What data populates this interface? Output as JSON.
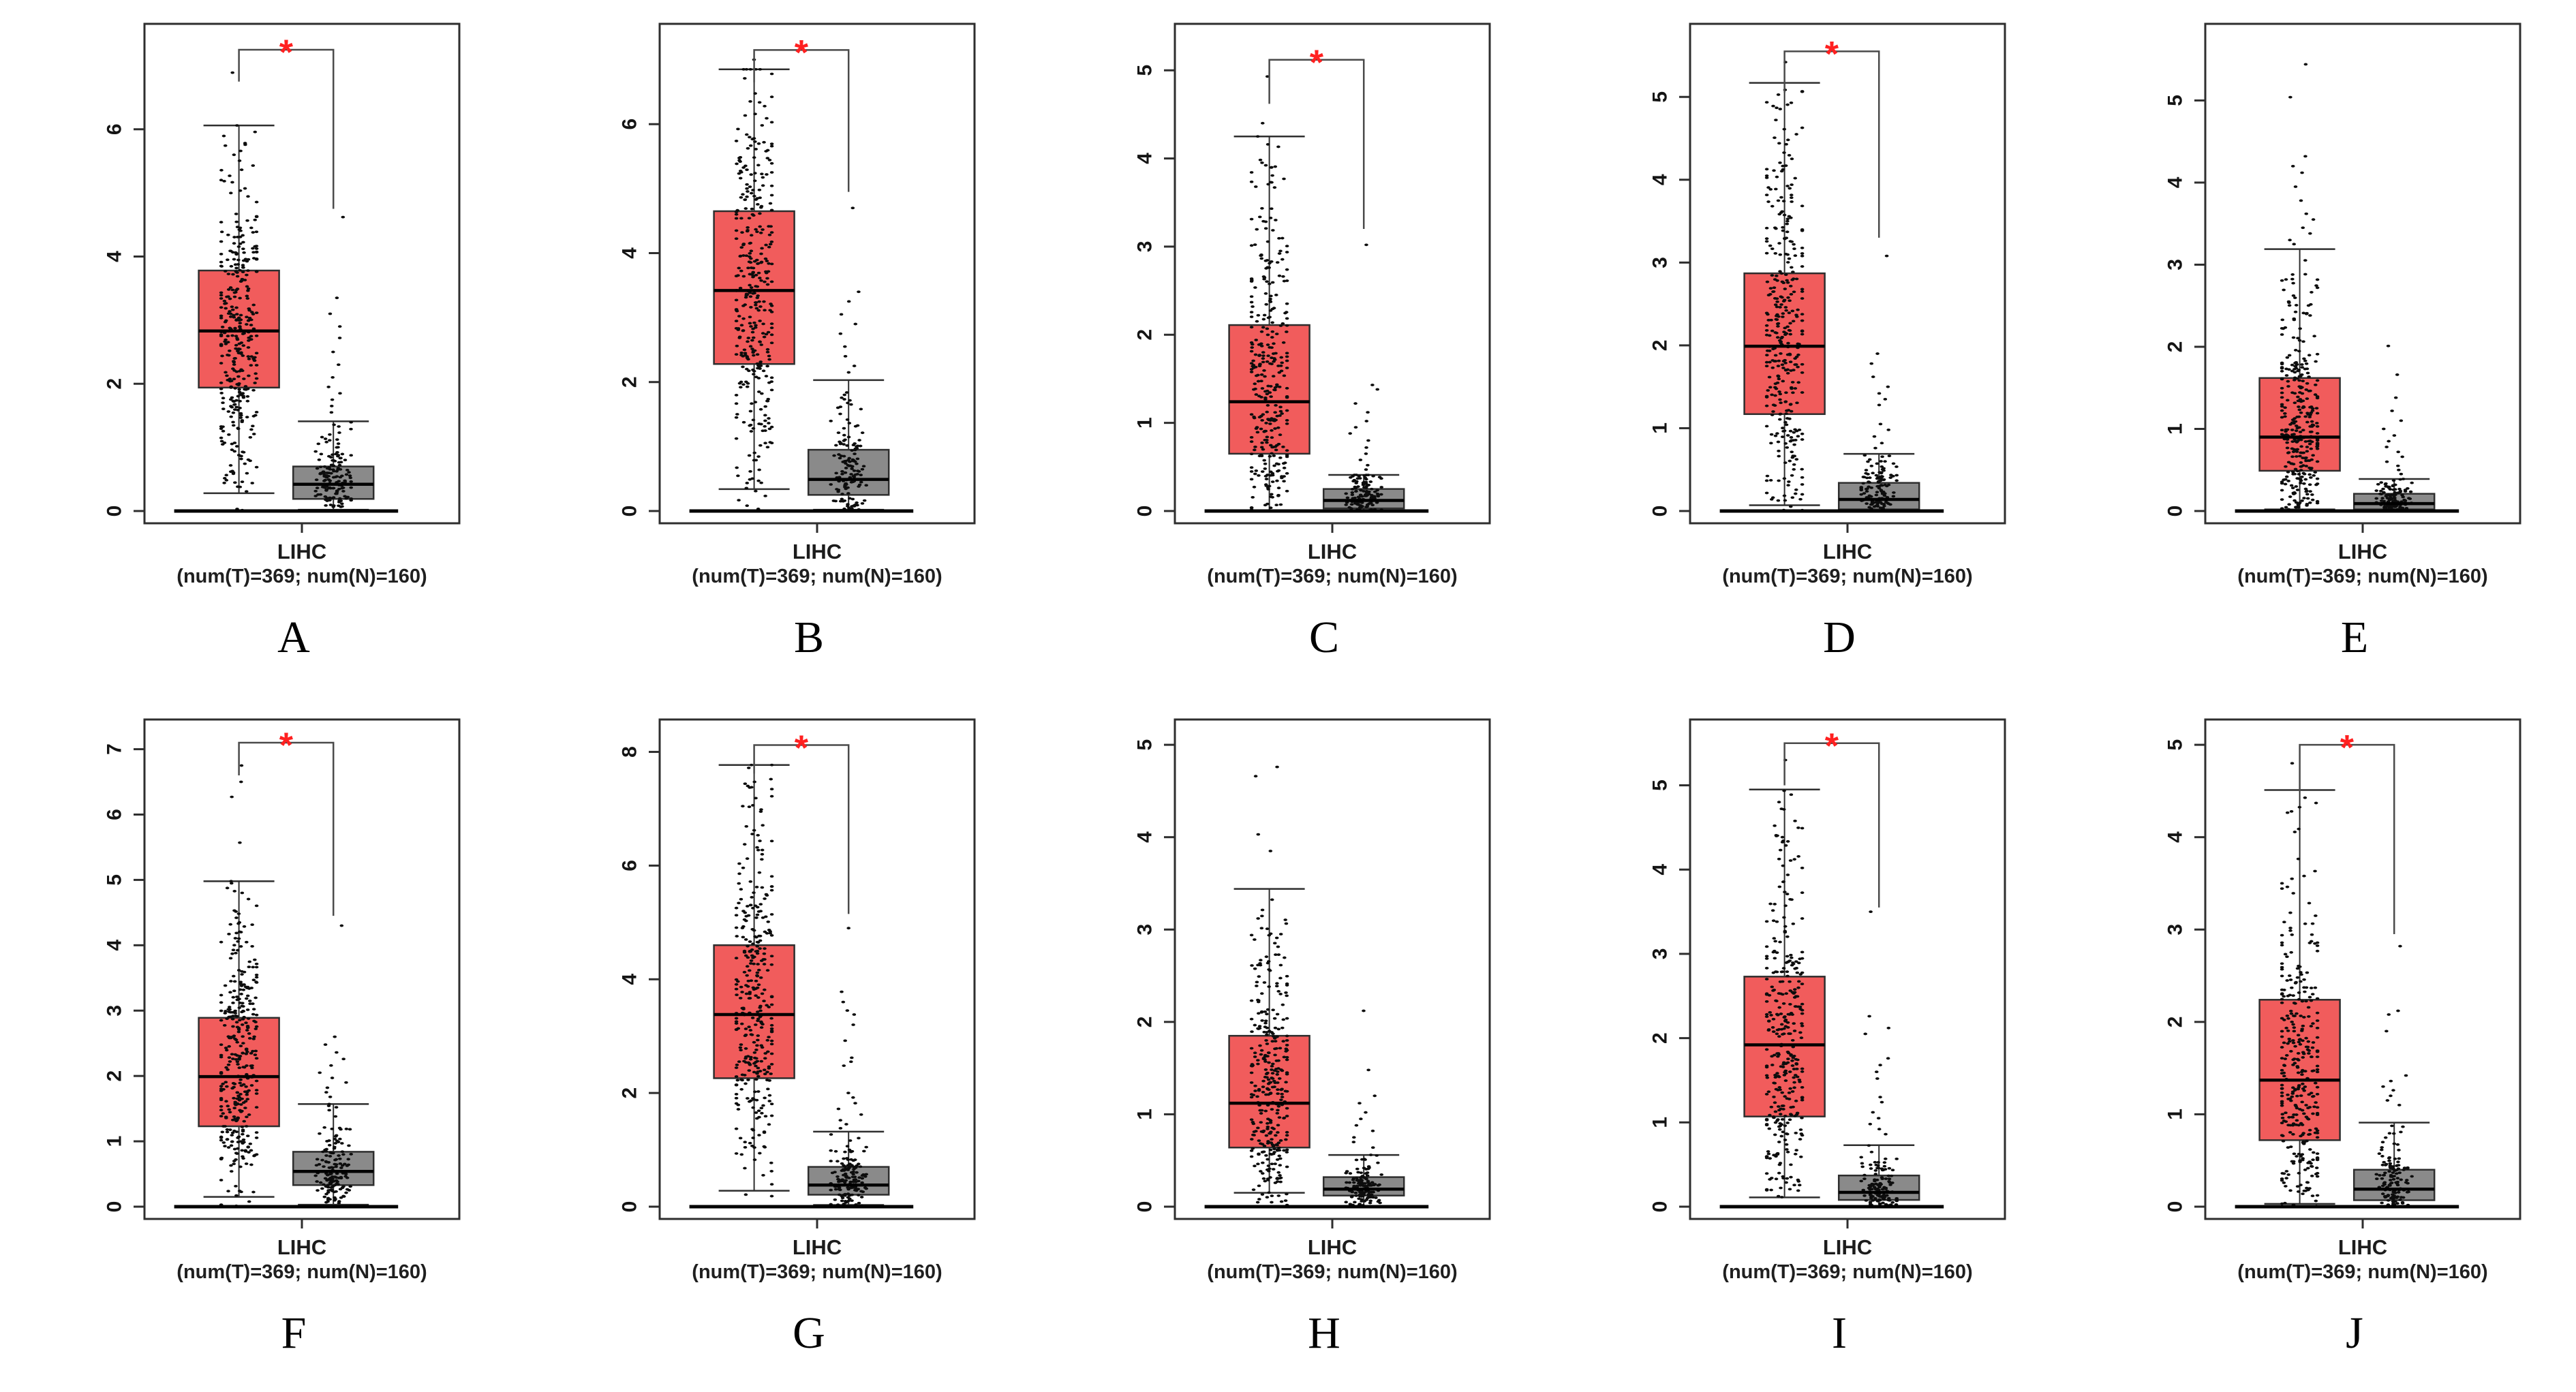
{
  "figure": {
    "description": "Ten GEPIA-style gene expression box plots (tumor vs normal) in LIHC",
    "cohort": "LIHC",
    "significance_marker": "*"
  },
  "chart_data": {
    "type": "box",
    "xlabel": "LIHC",
    "sublabel": "(num(T)=369; num(N)=160)",
    "n_tumor": 369,
    "n_normal": 160,
    "legend_position": "none",
    "grid": false,
    "colors": {
      "tumor": "#f15c5c",
      "normal": "#8a8a8a",
      "frame": "#2e2e2e",
      "point": "#0d0d0d",
      "median": "#000000",
      "bracket": "#4a4a4a",
      "significance": "#ff2020"
    },
    "panels": [
      {
        "letter": "A",
        "significant": true,
        "yticks": [
          0,
          2,
          4,
          6
        ],
        "ymax": 7.55,
        "bracket": {
          "top": 7.25,
          "right_bottom": 4.75
        },
        "tumor": {
          "low": 0.28,
          "q1": 1.94,
          "median": 2.83,
          "q3": 3.78,
          "high": 6.06,
          "outliers": [
            6.89
          ]
        },
        "normal": {
          "low": 0.02,
          "q1": 0.19,
          "median": 0.42,
          "q3": 0.7,
          "high": 1.41,
          "outliers": [
            4.62,
            3.35,
            3.1,
            2.9,
            2.72,
            2.5,
            2.3,
            2.1,
            1.95,
            1.85,
            1.75,
            1.65,
            1.55
          ]
        }
      },
      {
        "letter": "B",
        "significant": true,
        "yticks": [
          0,
          2,
          4,
          6
        ],
        "ymax": 7.45,
        "bracket": {
          "top": 7.15,
          "right_bottom": 4.95
        },
        "tumor": {
          "low": 0.34,
          "q1": 2.28,
          "median": 3.42,
          "q3": 4.65,
          "high": 6.85,
          "outliers": [
            7.0
          ]
        },
        "normal": {
          "low": 0.02,
          "q1": 0.25,
          "median": 0.49,
          "q3": 0.95,
          "high": 2.03,
          "outliers": [
            4.7,
            3.4,
            3.25,
            3.05,
            2.9,
            2.75,
            2.55,
            2.4,
            2.25,
            2.15
          ]
        }
      },
      {
        "letter": "C",
        "significant": true,
        "yticks": [
          0,
          1,
          2,
          3,
          4,
          5
        ],
        "ymax": 5.45,
        "bracket": {
          "top": 5.12,
          "right_bottom": 3.2
        },
        "tumor": {
          "low": 0.01,
          "q1": 0.65,
          "median": 1.24,
          "q3": 2.11,
          "high": 4.25,
          "outliers": [
            4.93,
            4.4
          ]
        },
        "normal": {
          "low": 0.0,
          "q1": 0.03,
          "median": 0.12,
          "q3": 0.25,
          "high": 0.41,
          "outliers": [
            3.02,
            1.43,
            1.38,
            1.22,
            1.12,
            1.02,
            0.95,
            0.88,
            0.8,
            0.72,
            0.65,
            0.58,
            0.52,
            0.47
          ]
        }
      },
      {
        "letter": "D",
        "significant": true,
        "yticks": [
          0,
          1,
          2,
          3,
          4,
          5
        ],
        "ymax": 5.8,
        "bracket": {
          "top": 5.55,
          "right_bottom": 3.3
        },
        "tumor": {
          "low": 0.07,
          "q1": 1.17,
          "median": 1.99,
          "q3": 2.87,
          "high": 5.17,
          "outliers": [
            5.42
          ]
        },
        "normal": {
          "low": 0.0,
          "q1": 0.02,
          "median": 0.14,
          "q3": 0.34,
          "high": 0.69,
          "outliers": [
            3.08,
            1.9,
            1.78,
            1.62,
            1.5,
            1.42,
            1.35,
            1.28,
            1.05,
            0.98,
            0.9,
            0.82,
            0.76
          ]
        }
      },
      {
        "letter": "E",
        "significant": false,
        "yticks": [
          0,
          1,
          2,
          3,
          4,
          5
        ],
        "ymax": 5.85,
        "bracket": null,
        "tumor": {
          "low": 0.02,
          "q1": 0.49,
          "median": 0.9,
          "q3": 1.62,
          "high": 3.19,
          "outliers": [
            5.44,
            5.04,
            4.32,
            4.2,
            4.12,
            3.95,
            3.78,
            3.62,
            3.55,
            3.45,
            3.38,
            3.3,
            3.25
          ]
        },
        "normal": {
          "low": 0.0,
          "q1": 0.02,
          "median": 0.09,
          "q3": 0.21,
          "high": 0.39,
          "outliers": [
            2.01,
            1.66,
            1.38,
            1.22,
            1.1,
            1.0,
            0.92,
            0.85,
            0.78,
            0.72,
            0.66,
            0.6,
            0.55,
            0.5,
            0.45
          ]
        }
      },
      {
        "letter": "F",
        "significant": true,
        "yticks": [
          0,
          1,
          2,
          3,
          4,
          5,
          6,
          7
        ],
        "ymax": 7.35,
        "bracket": {
          "top": 7.1,
          "right_bottom": 4.45
        },
        "tumor": {
          "low": 0.15,
          "q1": 1.23,
          "median": 1.99,
          "q3": 2.89,
          "high": 4.98,
          "outliers": [
            6.75,
            6.5,
            6.27,
            5.57
          ]
        },
        "normal": {
          "low": 0.03,
          "q1": 0.33,
          "median": 0.54,
          "q3": 0.84,
          "high": 1.57,
          "outliers": [
            4.3,
            2.6,
            2.48,
            2.36,
            2.26,
            2.16,
            2.05,
            1.97,
            1.9,
            1.82,
            1.75,
            1.68
          ]
        }
      },
      {
        "letter": "G",
        "significant": true,
        "yticks": [
          0,
          2,
          4,
          6,
          8
        ],
        "ymax": 8.45,
        "bracket": {
          "top": 8.12,
          "right_bottom": 5.15
        },
        "tumor": {
          "low": 0.28,
          "q1": 2.26,
          "median": 3.38,
          "q3": 4.6,
          "high": 7.77,
          "outliers": []
        },
        "normal": {
          "low": 0.03,
          "q1": 0.21,
          "median": 0.38,
          "q3": 0.7,
          "high": 1.32,
          "outliers": [
            4.9,
            3.78,
            3.6,
            3.45,
            3.38,
            3.2,
            2.92,
            2.62,
            2.55,
            2.48,
            2.0,
            1.92,
            1.82,
            1.72,
            1.62,
            1.52,
            1.45,
            1.38
          ]
        }
      },
      {
        "letter": "H",
        "significant": false,
        "yticks": [
          0,
          1,
          2,
          3,
          4,
          5
        ],
        "ymax": 5.2,
        "bracket": null,
        "tumor": {
          "low": 0.15,
          "q1": 0.64,
          "median": 1.12,
          "q3": 1.85,
          "high": 3.44,
          "outliers": [
            4.76,
            4.66,
            4.03,
            3.85
          ]
        },
        "normal": {
          "low": 0.0,
          "q1": 0.12,
          "median": 0.19,
          "q3": 0.32,
          "high": 0.56,
          "outliers": [
            2.12,
            1.48,
            1.2,
            1.12,
            1.02,
            0.95,
            0.88,
            0.82,
            0.75,
            0.7,
            0.64
          ]
        }
      },
      {
        "letter": "I",
        "significant": true,
        "yticks": [
          0,
          1,
          2,
          3,
          4,
          5
        ],
        "ymax": 5.7,
        "bracket": {
          "top": 5.5,
          "right_bottom": 3.55
        },
        "tumor": {
          "low": 0.11,
          "q1": 1.07,
          "median": 1.92,
          "q3": 2.73,
          "high": 4.95,
          "outliers": [
            5.3
          ]
        },
        "normal": {
          "low": 0.0,
          "q1": 0.08,
          "median": 0.17,
          "q3": 0.37,
          "high": 0.73,
          "outliers": [
            3.5,
            2.26,
            2.12,
            2.05,
            1.76,
            1.68,
            1.6,
            1.52,
            1.3,
            1.24,
            1.12,
            1.05,
            0.98,
            0.92,
            0.86
          ]
        }
      },
      {
        "letter": "J",
        "significant": true,
        "yticks": [
          0,
          1,
          2,
          3,
          4,
          5
        ],
        "ymax": 5.2,
        "bracket": {
          "top": 5.0,
          "right_bottom": 2.95
        },
        "tumor": {
          "low": 0.03,
          "q1": 0.72,
          "median": 1.37,
          "q3": 2.24,
          "high": 4.51,
          "outliers": [
            4.8
          ]
        },
        "normal": {
          "low": 0.0,
          "q1": 0.07,
          "median": 0.19,
          "q3": 0.4,
          "high": 0.91,
          "outliers": [
            2.82,
            2.12,
            2.08,
            1.9,
            1.42,
            1.36,
            1.3,
            1.26,
            1.2,
            1.15,
            1.1
          ]
        }
      }
    ]
  }
}
